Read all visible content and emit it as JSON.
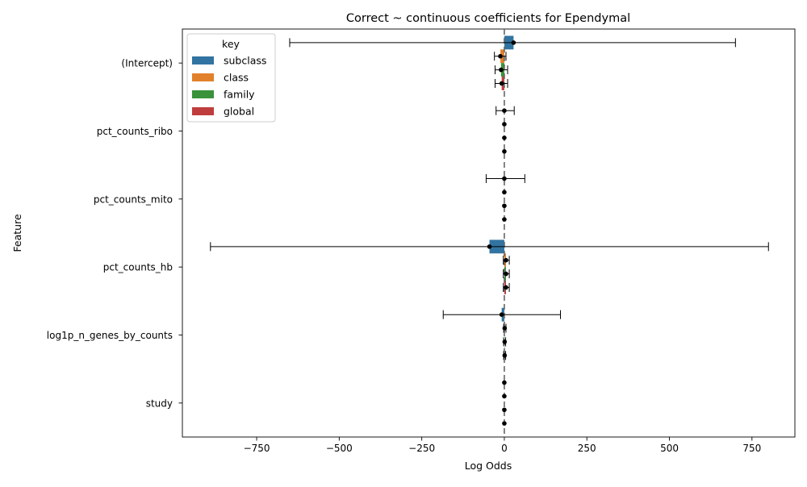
{
  "chart_data": {
    "type": "bar",
    "orientation": "horizontal",
    "title": "Correct ~ continuous coefficients for Ependymal",
    "xlabel": "Log Odds",
    "ylabel": "Feature",
    "xlim": [
      -975,
      880
    ],
    "xticks": [
      -750,
      -500,
      -250,
      0,
      250,
      500,
      750
    ],
    "xtick_labels": [
      "−750",
      "−500",
      "−250",
      "0",
      "250",
      "500",
      "750"
    ],
    "reference_line": 0,
    "categories": [
      "(Intercept)",
      "pct_counts_ribo",
      "pct_counts_mito",
      "pct_counts_hb",
      "log1p_n_genes_by_counts",
      "study"
    ],
    "legend": {
      "title": "key",
      "position": "upper left"
    },
    "series": [
      {
        "name": "subclass",
        "color": "#3274a1",
        "values": [
          28,
          0,
          0,
          -45,
          -8,
          0
        ],
        "err_low": [
          -650,
          -25,
          -55,
          -890,
          -185,
          0
        ],
        "err_high": [
          700,
          30,
          62,
          800,
          170,
          0
        ]
      },
      {
        "name": "class",
        "color": "#e1812c",
        "values": [
          -12,
          0,
          0,
          5,
          1,
          0
        ],
        "err_low": [
          -30,
          0,
          0,
          -3,
          -2,
          0
        ],
        "err_high": [
          5,
          0,
          0,
          15,
          5,
          0
        ]
      },
      {
        "name": "family",
        "color": "#3a923a",
        "values": [
          -10,
          0,
          0,
          5,
          1,
          0
        ],
        "err_low": [
          -28,
          0,
          0,
          -3,
          -2,
          0
        ],
        "err_high": [
          10,
          0,
          0,
          15,
          4,
          0
        ]
      },
      {
        "name": "global",
        "color": "#c03d3e",
        "values": [
          -8,
          0,
          0,
          5,
          1,
          0
        ],
        "err_low": [
          -28,
          0,
          0,
          -3,
          -2,
          0
        ],
        "err_high": [
          10,
          0,
          0,
          15,
          4,
          0
        ]
      }
    ]
  }
}
